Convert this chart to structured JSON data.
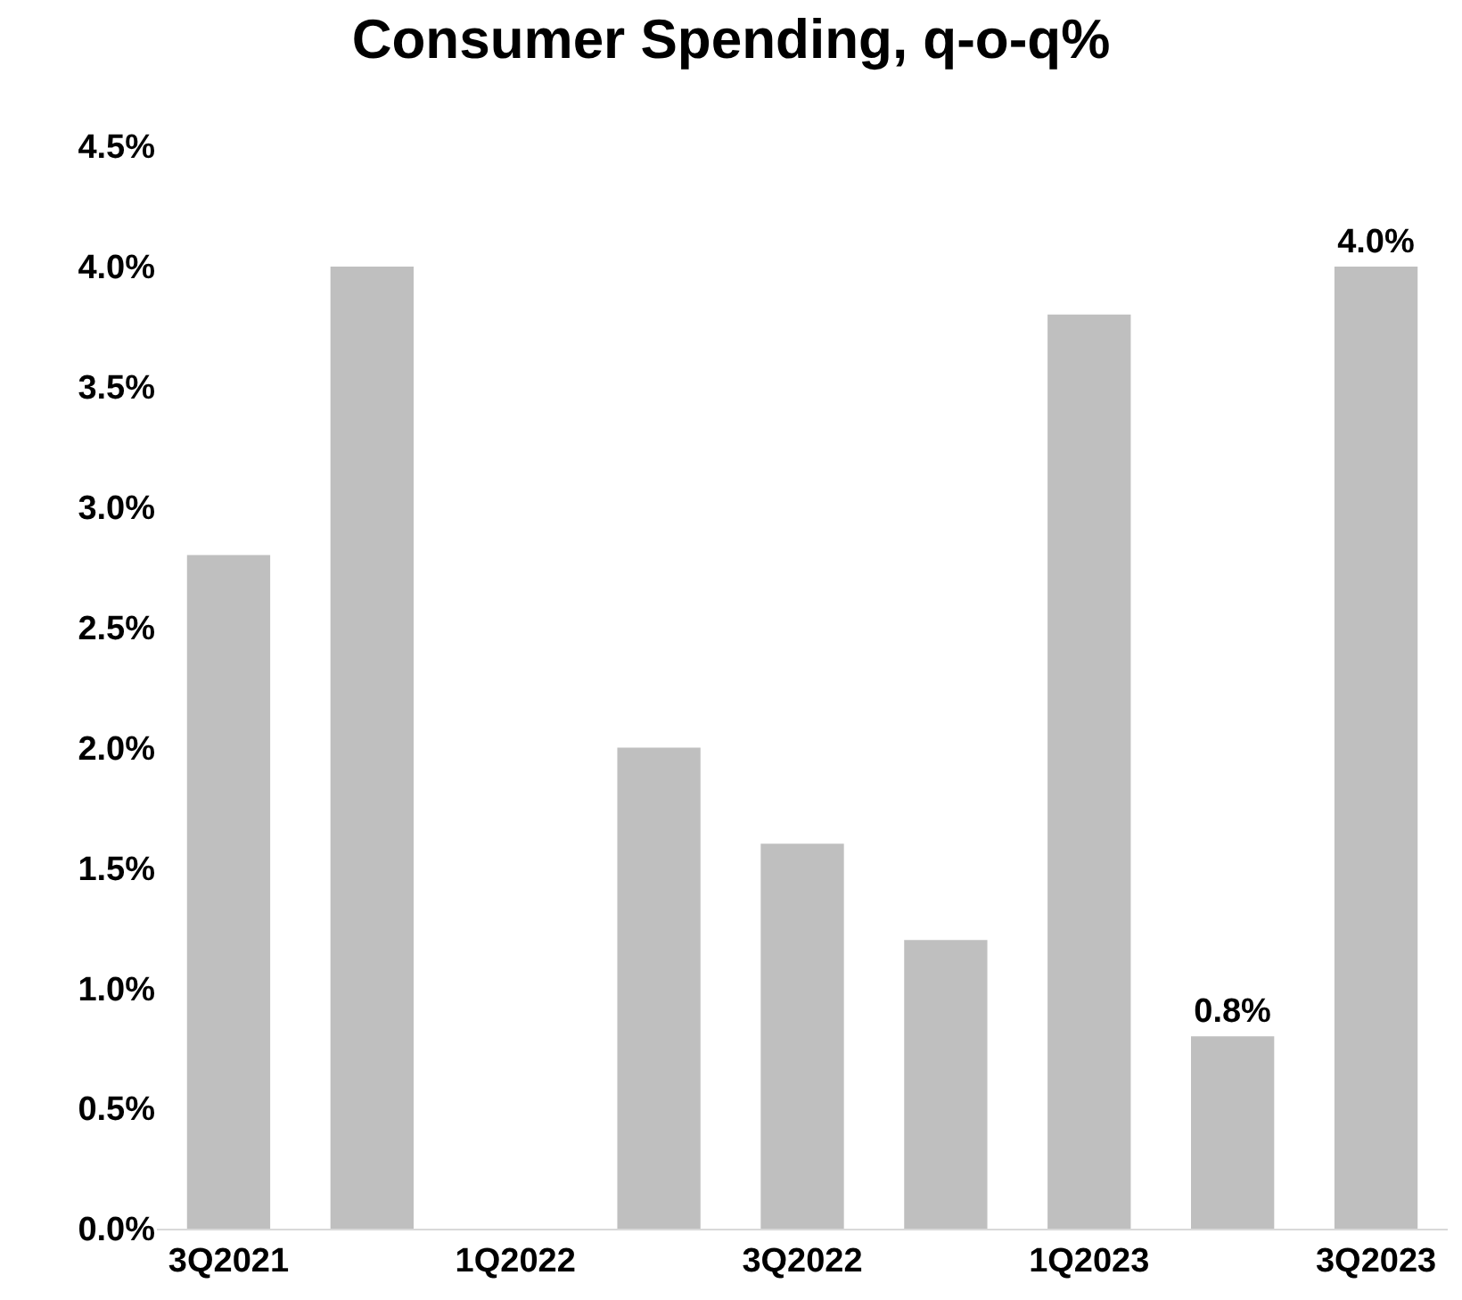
{
  "chart_data": {
    "type": "bar",
    "title": "Consumer Spending, q-o-q%",
    "categories": [
      "3Q2021",
      null,
      "1Q2022",
      null,
      "3Q2022",
      null,
      "1Q2023",
      null,
      "3Q2023"
    ],
    "values": [
      2.8,
      4.0,
      0,
      2.0,
      1.6,
      1.2,
      3.8,
      0.8,
      4.0
    ],
    "value_labels": [
      null,
      null,
      null,
      null,
      null,
      null,
      null,
      "0.8%",
      "4.0%"
    ],
    "color": "#bfbfbf",
    "ylim": [
      0,
      4.5
    ],
    "yticks": [
      {
        "value": 0,
        "label": "0.0%"
      },
      {
        "value": 0.5,
        "label": "0.5%"
      },
      {
        "value": 1,
        "label": "1.0%"
      },
      {
        "value": 1.5,
        "label": "1.5%"
      },
      {
        "value": 2,
        "label": "2.0%"
      },
      {
        "value": 2.5,
        "label": "2.5%"
      },
      {
        "value": 3,
        "label": "3.0%"
      },
      {
        "value": 3.5,
        "label": "3.5%"
      },
      {
        "value": 4,
        "label": "4.0%"
      },
      {
        "value": 4.5,
        "label": "4.5%"
      }
    ],
    "grid": false
  }
}
